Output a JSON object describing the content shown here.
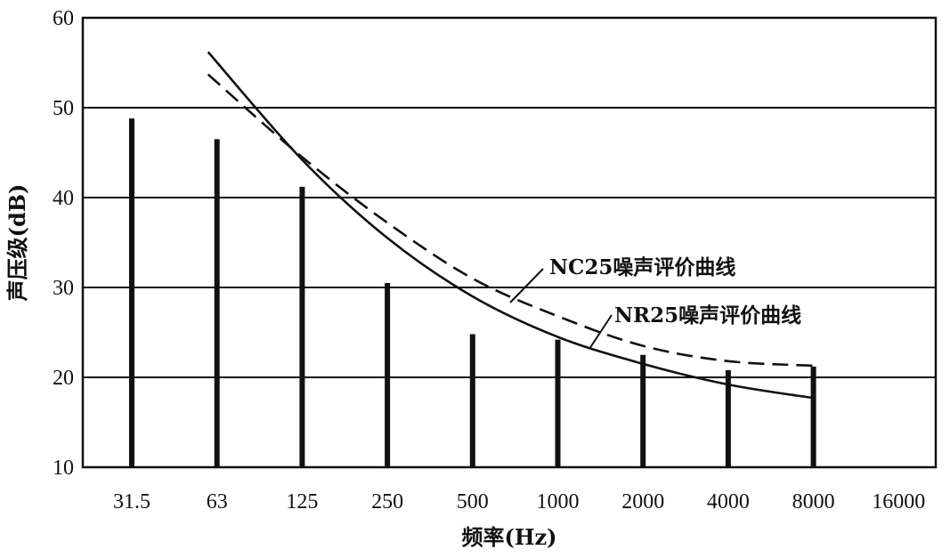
{
  "chart_data": {
    "type": "bar",
    "xlabel": "频率(Hz)",
    "ylabel": "声压级(dB)",
    "ylim": [
      10,
      60
    ],
    "yticks": [
      10,
      20,
      30,
      40,
      50,
      60
    ],
    "grid": "horizontal",
    "categories": [
      "31.5",
      "63",
      "125",
      "250",
      "500",
      "1000",
      "2000",
      "4000",
      "8000",
      "16000"
    ],
    "bars": {
      "categories": [
        "31.5",
        "63",
        "125",
        "250",
        "500",
        "1000",
        "2000",
        "4000",
        "8000"
      ],
      "values": [
        48.8,
        46.5,
        41.2,
        30.5,
        24.8,
        24.2,
        22.5,
        20.8,
        21.2
      ]
    },
    "series": [
      {
        "name": "NR25噪声评价曲线",
        "style": "solid",
        "x": [
          "63",
          "125",
          "250",
          "500",
          "1000",
          "2000",
          "4000",
          "8000"
        ],
        "values": [
          56.2,
          44.2,
          35.5,
          29.0,
          24.5,
          21.5,
          19.2,
          17.7
        ]
      },
      {
        "name": "NC25噪声评价曲线",
        "style": "dashed",
        "x": [
          "63",
          "125",
          "250",
          "500",
          "1000",
          "2000",
          "4000",
          "8000"
        ],
        "values": [
          53.7,
          44.5,
          37.2,
          31.0,
          26.8,
          23.5,
          21.8,
          21.3
        ]
      }
    ],
    "annotations": [
      {
        "text": "NC25噪声评价曲线",
        "points_to": "NC25噪声评价曲线"
      },
      {
        "text": "NR25噪声评价曲线",
        "points_to": "NR25噪声评价曲线"
      }
    ],
    "colors": {
      "ink": "#111111",
      "background": "#ffffff"
    }
  }
}
